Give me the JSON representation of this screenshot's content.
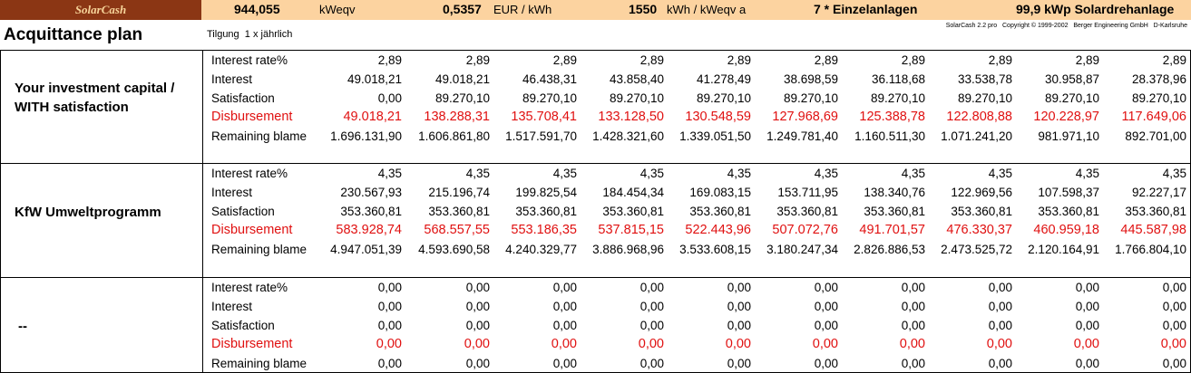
{
  "header": {
    "logo": "SolarCash",
    "items": [
      {
        "value": "944,055",
        "unit": "kWeqv"
      },
      {
        "value": "0,5357",
        "unit": "EUR / kWh"
      },
      {
        "value": "1550",
        "unit": "kWh / kWeqv a"
      },
      {
        "value": "7 * Einzelanlagen"
      },
      {
        "value": "99,9 kWp Solardrehanlage"
      }
    ]
  },
  "title": "Acquittance plan",
  "subtitle": "Tilgung  1 x jährlich",
  "copyright": "SolarCash 2.2 pro   Copyright © 1999-2002   Berger Engineering GmbH   D-Karlsruhe",
  "sections": [
    {
      "title": "Your investment capital / WITH satisfaction",
      "rows": [
        {
          "label": "Interest rate%",
          "values": [
            "2,89",
            "2,89",
            "2,89",
            "2,89",
            "2,89",
            "2,89",
            "2,89",
            "2,89",
            "2,89",
            "2,89"
          ]
        },
        {
          "label": "Interest",
          "values": [
            "49.018,21",
            "49.018,21",
            "46.438,31",
            "43.858,40",
            "41.278,49",
            "38.698,59",
            "36.118,68",
            "33.538,78",
            "30.958,87",
            "28.378,96"
          ]
        },
        {
          "label": "Satisfaction",
          "values": [
            "0,00",
            "89.270,10",
            "89.270,10",
            "89.270,10",
            "89.270,10",
            "89.270,10",
            "89.270,10",
            "89.270,10",
            "89.270,10",
            "89.270,10"
          ]
        },
        {
          "label": "Disbursement",
          "values": [
            "49.018,21",
            "138.288,31",
            "135.708,41",
            "133.128,50",
            "130.548,59",
            "127.968,69",
            "125.388,78",
            "122.808,88",
            "120.228,97",
            "117.649,06"
          ]
        },
        {
          "label": "Remaining blame",
          "values": [
            "1.696.131,90",
            "1.606.861,80",
            "1.517.591,70",
            "1.428.321,60",
            "1.339.051,50",
            "1.249.781,40",
            "1.160.511,30",
            "1.071.241,20",
            "981.971,10",
            "892.701,00"
          ]
        }
      ]
    },
    {
      "title": "KfW Umweltprogramm",
      "rows": [
        {
          "label": "Interest rate%",
          "values": [
            "4,35",
            "4,35",
            "4,35",
            "4,35",
            "4,35",
            "4,35",
            "4,35",
            "4,35",
            "4,35",
            "4,35"
          ]
        },
        {
          "label": "Interest",
          "values": [
            "230.567,93",
            "215.196,74",
            "199.825,54",
            "184.454,34",
            "169.083,15",
            "153.711,95",
            "138.340,76",
            "122.969,56",
            "107.598,37",
            "92.227,17"
          ]
        },
        {
          "label": "Satisfaction",
          "values": [
            "353.360,81",
            "353.360,81",
            "353.360,81",
            "353.360,81",
            "353.360,81",
            "353.360,81",
            "353.360,81",
            "353.360,81",
            "353.360,81",
            "353.360,81"
          ]
        },
        {
          "label": "Disbursement",
          "values": [
            "583.928,74",
            "568.557,55",
            "553.186,35",
            "537.815,15",
            "522.443,96",
            "507.072,76",
            "491.701,57",
            "476.330,37",
            "460.959,18",
            "445.587,98"
          ]
        },
        {
          "label": "Remaining blame",
          "values": [
            "4.947.051,39",
            "4.593.690,58",
            "4.240.329,77",
            "3.886.968,96",
            "3.533.608,15",
            "3.180.247,34",
            "2.826.886,53",
            "2.473.525,72",
            "2.120.164,91",
            "1.766.804,10"
          ]
        }
      ]
    },
    {
      "title": "--",
      "rows": [
        {
          "label": "Interest rate%",
          "values": [
            "0,00",
            "0,00",
            "0,00",
            "0,00",
            "0,00",
            "0,00",
            "0,00",
            "0,00",
            "0,00",
            "0,00"
          ]
        },
        {
          "label": "Interest",
          "values": [
            "0,00",
            "0,00",
            "0,00",
            "0,00",
            "0,00",
            "0,00",
            "0,00",
            "0,00",
            "0,00",
            "0,00"
          ]
        },
        {
          "label": "Satisfaction",
          "values": [
            "0,00",
            "0,00",
            "0,00",
            "0,00",
            "0,00",
            "0,00",
            "0,00",
            "0,00",
            "0,00",
            "0,00"
          ]
        },
        {
          "label": "Disbursement",
          "values": [
            "0,00",
            "0,00",
            "0,00",
            "0,00",
            "0,00",
            "0,00",
            "0,00",
            "0,00",
            "0,00",
            "0,00"
          ]
        },
        {
          "label": "Remaining blame",
          "values": [
            "0,00",
            "0,00",
            "0,00",
            "0,00",
            "0,00",
            "0,00",
            "0,00",
            "0,00",
            "0,00",
            "0,00"
          ]
        }
      ]
    }
  ]
}
